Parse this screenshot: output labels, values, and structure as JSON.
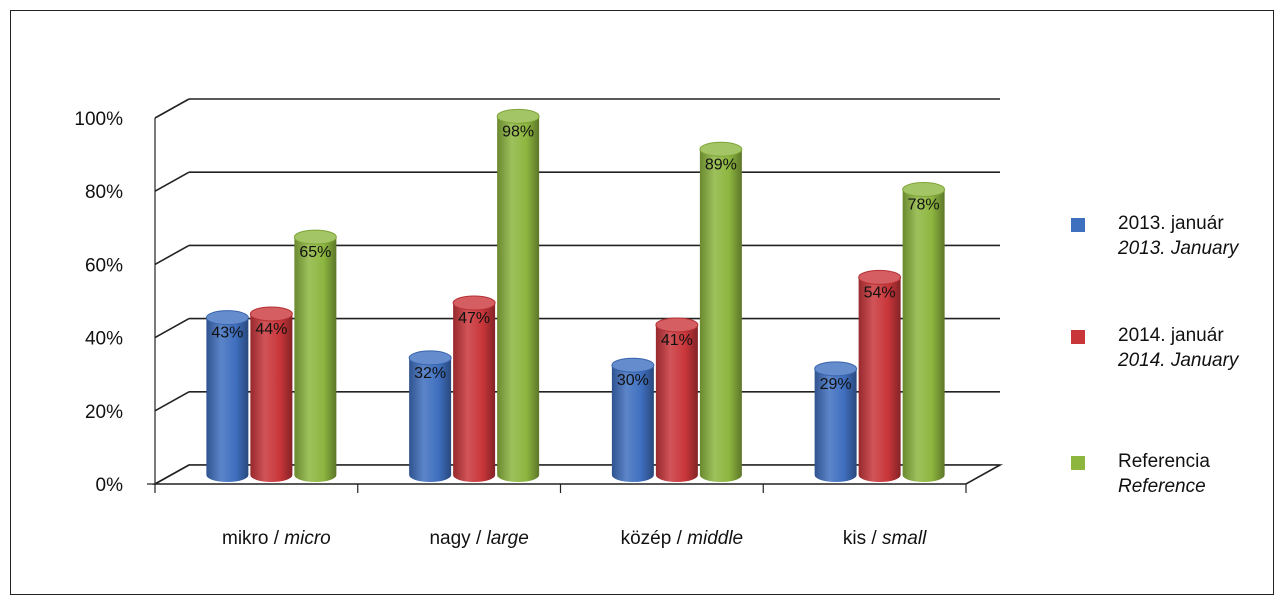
{
  "chart_data": {
    "type": "bar",
    "categories": [
      {
        "main": "mikro / ",
        "sub": "micro"
      },
      {
        "main": "nagy / ",
        "sub": "large"
      },
      {
        "main": "közép / ",
        "sub": "middle"
      },
      {
        "main": "kis / ",
        "sub": "small"
      }
    ],
    "series": [
      {
        "name": "2013. január",
        "name_en": "2013. January",
        "color": "#3f6fbf",
        "values": [
          43,
          32,
          30,
          29
        ],
        "labels": [
          "43%",
          "32%",
          "30%",
          "29%"
        ]
      },
      {
        "name": "2014. január",
        "name_en": "2014. January",
        "color": "#c9363a",
        "values": [
          44,
          47,
          41,
          54
        ],
        "labels": [
          "44%",
          "47%",
          "41%",
          "54%"
        ]
      },
      {
        "name": "Referencia",
        "name_en": "Reference",
        "color": "#8db63f",
        "values": [
          65,
          98,
          89,
          78
        ],
        "labels": [
          "65%",
          "98%",
          "89%",
          "78%"
        ]
      }
    ],
    "ylim": [
      0,
      100
    ],
    "yticks": [
      "0%",
      "20%",
      "40%",
      "60%",
      "80%",
      "100%"
    ],
    "grid": true,
    "legend_position": "right",
    "style": "3d-cylinder"
  }
}
